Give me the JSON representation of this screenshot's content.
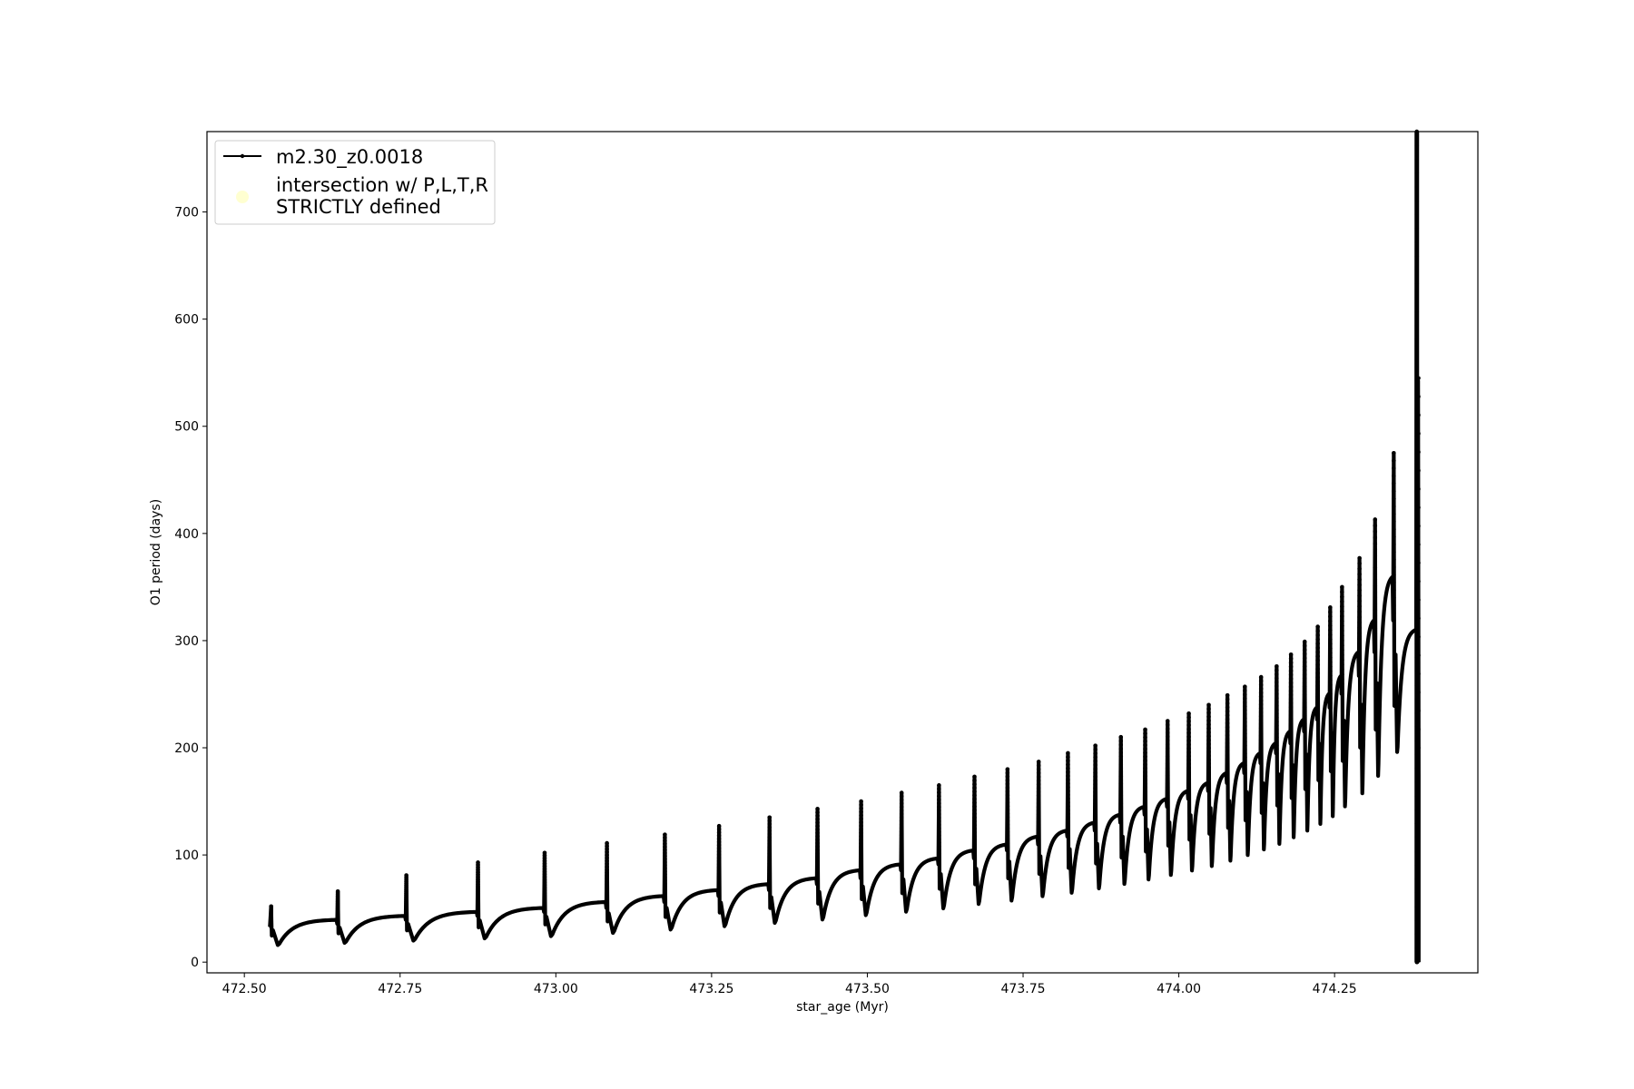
{
  "chart_data": {
    "type": "line",
    "title": "",
    "xlabel": "star_age (Myr)",
    "ylabel": "O1 period (days)",
    "xlim": [
      472.44,
      474.48
    ],
    "ylim": [
      -10,
      775
    ],
    "xticks": [
      472.5,
      472.75,
      473.0,
      473.25,
      473.5,
      473.75,
      474.0,
      474.25
    ],
    "xtick_labels": [
      "472.50",
      "472.75",
      "473.00",
      "473.25",
      "473.50",
      "473.75",
      "474.00",
      "474.25"
    ],
    "yticks": [
      0,
      100,
      200,
      300,
      400,
      500,
      600,
      700
    ],
    "ytick_labels": [
      "0",
      "100",
      "200",
      "300",
      "400",
      "500",
      "600",
      "700"
    ],
    "grid": false,
    "legend_position": "top-left",
    "series": [
      {
        "name": "m2.30_z0.0018",
        "color": "#000000",
        "style": "line-with-point-markers",
        "pulses": [
          {
            "x": 472.543,
            "peak": 52,
            "min": 15
          },
          {
            "x": 472.65,
            "peak": 66,
            "min": 17
          },
          {
            "x": 472.76,
            "peak": 81,
            "min": 19
          },
          {
            "x": 472.875,
            "peak": 93,
            "min": 21
          },
          {
            "x": 472.982,
            "peak": 102,
            "min": 23
          },
          {
            "x": 473.082,
            "peak": 111,
            "min": 26
          },
          {
            "x": 473.175,
            "peak": 119,
            "min": 29
          },
          {
            "x": 473.262,
            "peak": 127,
            "min": 32
          },
          {
            "x": 473.343,
            "peak": 135,
            "min": 35
          },
          {
            "x": 473.42,
            "peak": 143,
            "min": 38
          },
          {
            "x": 473.49,
            "peak": 150,
            "min": 42
          },
          {
            "x": 473.555,
            "peak": 158,
            "min": 45
          },
          {
            "x": 473.615,
            "peak": 165,
            "min": 48
          },
          {
            "x": 473.672,
            "peak": 173,
            "min": 52
          },
          {
            "x": 473.725,
            "peak": 180,
            "min": 55
          },
          {
            "x": 473.775,
            "peak": 187,
            "min": 59
          },
          {
            "x": 473.822,
            "peak": 195,
            "min": 62
          },
          {
            "x": 473.866,
            "peak": 202,
            "min": 66
          },
          {
            "x": 473.907,
            "peak": 210,
            "min": 70
          },
          {
            "x": 473.946,
            "peak": 217,
            "min": 74
          },
          {
            "x": 473.982,
            "peak": 225,
            "min": 78
          },
          {
            "x": 474.016,
            "peak": 232,
            "min": 82
          },
          {
            "x": 474.048,
            "peak": 240,
            "min": 86
          },
          {
            "x": 474.078,
            "peak": 249,
            "min": 91
          },
          {
            "x": 474.106,
            "peak": 257,
            "min": 96
          },
          {
            "x": 474.132,
            "peak": 266,
            "min": 101
          },
          {
            "x": 474.157,
            "peak": 276,
            "min": 106
          },
          {
            "x": 474.18,
            "peak": 287,
            "min": 112
          },
          {
            "x": 474.202,
            "peak": 299,
            "min": 118
          },
          {
            "x": 474.223,
            "peak": 313,
            "min": 124
          },
          {
            "x": 474.243,
            "peak": 331,
            "min": 131
          },
          {
            "x": 474.262,
            "peak": 350,
            "min": 140
          },
          {
            "x": 474.29,
            "peak": 377,
            "min": 152
          },
          {
            "x": 474.315,
            "peak": 413,
            "min": 168
          },
          {
            "x": 474.345,
            "peak": 475,
            "min": 190
          }
        ],
        "final_spike": {
          "x": 474.382,
          "top": 775,
          "bottom": 0,
          "end_y": 310
        }
      },
      {
        "name": "intersection w/ P,L,T,R\nSTRICTLY defined",
        "color": "#ffffb2",
        "style": "marker-only",
        "points": []
      }
    ]
  }
}
